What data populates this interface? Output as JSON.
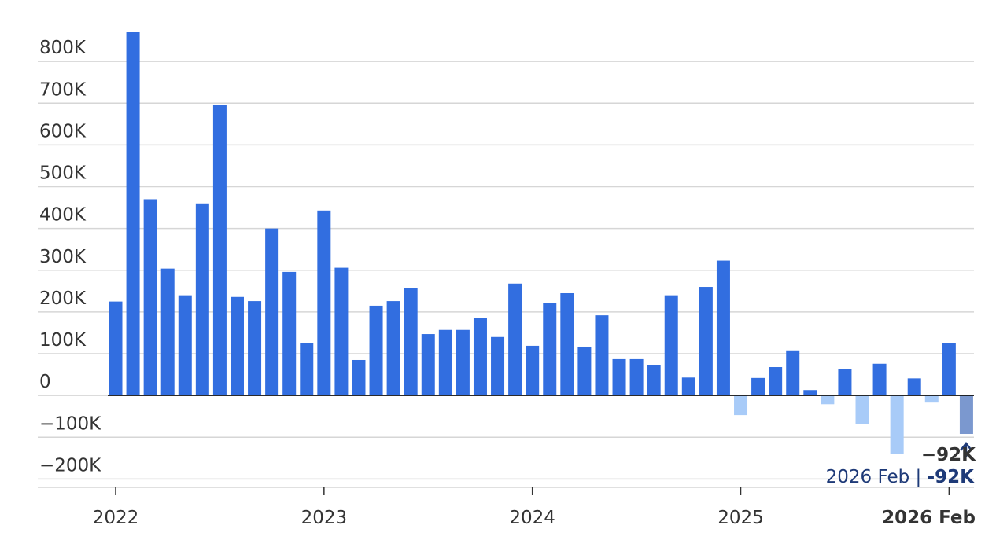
{
  "chart_data": {
    "type": "bar",
    "series": [
      {
        "values": [
          225000,
          870000,
          470000,
          304000,
          240000,
          460000,
          696000,
          236000,
          226000,
          400000,
          296000,
          126000,
          443000,
          306000,
          85000,
          215000,
          226000,
          257000,
          147000,
          157000,
          157000,
          185000,
          140000,
          268000,
          119000,
          221000,
          245000,
          117000,
          192000,
          87000,
          87000,
          72000,
          240000,
          43000,
          260000,
          323000,
          -47000,
          42000,
          68000,
          108000,
          13000,
          -21000,
          64000,
          -68000,
          76000,
          -140000,
          41000,
          -17000,
          126000,
          -92000
        ],
        "colors": [
          "#326ee0",
          "#326ee0",
          "#326ee0",
          "#326ee0",
          "#326ee0",
          "#326ee0",
          "#326ee0",
          "#326ee0",
          "#326ee0",
          "#326ee0",
          "#326ee0",
          "#326ee0",
          "#326ee0",
          "#326ee0",
          "#326ee0",
          "#326ee0",
          "#326ee0",
          "#326ee0",
          "#326ee0",
          "#326ee0",
          "#326ee0",
          "#326ee0",
          "#326ee0",
          "#326ee0",
          "#326ee0",
          "#326ee0",
          "#326ee0",
          "#326ee0",
          "#326ee0",
          "#326ee0",
          "#326ee0",
          "#326ee0",
          "#326ee0",
          "#326ee0",
          "#326ee0",
          "#326ee0",
          "#a8cbf8",
          "#326ee0",
          "#326ee0",
          "#326ee0",
          "#326ee0",
          "#a8cbf8",
          "#326ee0",
          "#a8cbf8",
          "#326ee0",
          "#a8cbf8",
          "#326ee0",
          "#a8cbf8",
          "#326ee0",
          "#7b98cf"
        ]
      }
    ],
    "ylim": [
      -220000,
      870000
    ],
    "yticks": [
      {
        "value": -200000,
        "label": "−200K"
      },
      {
        "value": -100000,
        "label": "−100K"
      },
      0,
      {
        "value": 100000,
        "label": "100K"
      },
      {
        "value": 200000,
        "label": "200K"
      },
      {
        "value": 300000,
        "label": "300K"
      },
      {
        "value": 400000,
        "label": "400K"
      },
      {
        "value": 500000,
        "label": "500K"
      },
      {
        "value": 600000,
        "label": "600K"
      },
      {
        "value": 700000,
        "label": "700K"
      },
      {
        "value": 800000,
        "label": "800K"
      }
    ],
    "xticks": [
      {
        "index": 0,
        "label": "2022"
      },
      {
        "index": 12,
        "label": "2023"
      },
      {
        "index": 24,
        "label": "2024"
      },
      {
        "index": 36,
        "label": "2025"
      },
      {
        "index": 48,
        "label": "2026 Feb"
      }
    ],
    "grid": true,
    "annotation": {
      "value_label": "−92K",
      "caption": "2026 Feb",
      "separator": "|",
      "caption_value": "-92K"
    }
  }
}
